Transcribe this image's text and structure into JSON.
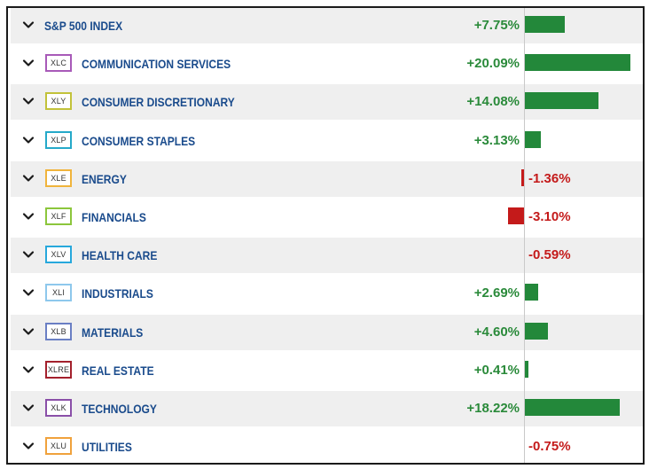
{
  "colors": {
    "positive_text": "#2a8a3a",
    "negative_text": "#c41a1a",
    "positive_bar": "#23883a",
    "negative_bar": "#c41a1a",
    "name_text": "#1a4b8c",
    "row_alt": "#efefef"
  },
  "rows": [
    {
      "ticker": "",
      "name": "S&P 500 INDEX",
      "pct": "+7.75%",
      "value": 7.75,
      "badge_color": "",
      "icon": "chevron-down-icon"
    },
    {
      "ticker": "XLC",
      "name": "COMMUNICATION SERVICES",
      "pct": "+20.09%",
      "value": 20.09,
      "badge_color": "#a85ab8",
      "icon": "chevron-down-icon"
    },
    {
      "ticker": "XLY",
      "name": "CONSUMER DISCRETIONARY",
      "pct": "+14.08%",
      "value": 14.08,
      "badge_color": "#c2c23a",
      "icon": "chevron-down-icon"
    },
    {
      "ticker": "XLP",
      "name": "CONSUMER STAPLES",
      "pct": "+3.13%",
      "value": 3.13,
      "badge_color": "#25a9c9",
      "icon": "chevron-down-icon"
    },
    {
      "ticker": "XLE",
      "name": "ENERGY",
      "pct": "-1.36%",
      "value": -1.36,
      "badge_color": "#f0b43c",
      "icon": "chevron-down-icon"
    },
    {
      "ticker": "XLF",
      "name": "FINANCIALS",
      "pct": "-3.10%",
      "value": -3.1,
      "badge_color": "#8cc63c",
      "icon": "chevron-down-icon"
    },
    {
      "ticker": "XLV",
      "name": "HEALTH CARE",
      "pct": "-0.59%",
      "value": -0.59,
      "badge_color": "#27a8dc",
      "icon": "chevron-down-icon"
    },
    {
      "ticker": "XLI",
      "name": "INDUSTRIALS",
      "pct": "+2.69%",
      "value": 2.69,
      "badge_color": "#8ec8ec",
      "icon": "chevron-down-icon"
    },
    {
      "ticker": "XLB",
      "name": "MATERIALS",
      "pct": "+4.60%",
      "value": 4.6,
      "badge_color": "#6a7fc4",
      "icon": "chevron-down-icon"
    },
    {
      "ticker": "XLRE",
      "name": "REAL ESTATE",
      "pct": "+0.41%",
      "value": 0.41,
      "badge_color": "#a3202c",
      "icon": "chevron-down-icon"
    },
    {
      "ticker": "XLK",
      "name": "TECHNOLOGY",
      "pct": "+18.22%",
      "value": 18.22,
      "badge_color": "#8a4fa8",
      "icon": "chevron-down-icon"
    },
    {
      "ticker": "XLU",
      "name": "UTILITIES",
      "pct": "-0.75%",
      "value": -0.75,
      "badge_color": "#f0a23c",
      "icon": "chevron-down-icon"
    }
  ]
}
